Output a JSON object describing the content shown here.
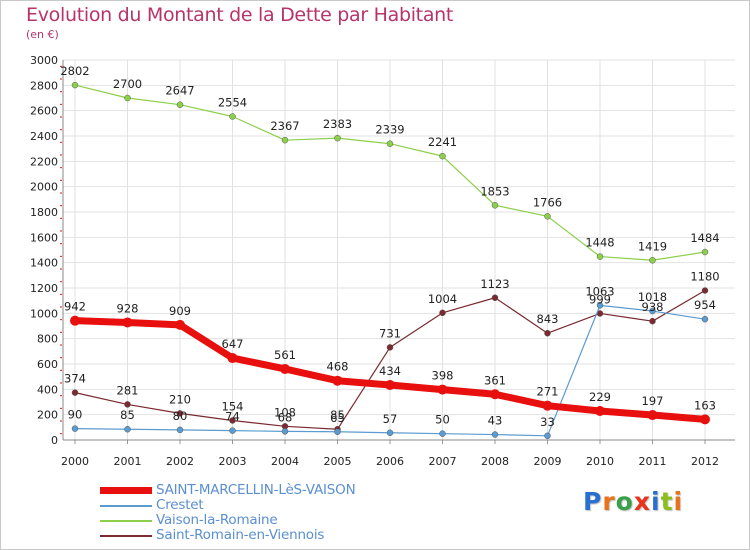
{
  "title": "Evolution du Montant de la Dette par Habitant",
  "unit": "(en €)",
  "logo": {
    "text": "Proxiti",
    "letters": [
      "P",
      "r",
      "o",
      "x",
      "i",
      "t",
      "i"
    ],
    "colors": [
      "#2a6fd0",
      "#e8731a",
      "#3aa04a",
      "#e8341a",
      "#2a6fd0",
      "#8bbf1a",
      "#e8731a"
    ]
  },
  "chart_data": {
    "type": "line",
    "title": "Evolution du Montant de la Dette par Habitant",
    "subtitle": "(en €)",
    "x": [
      "2000",
      "2001",
      "2002",
      "2003",
      "2004",
      "2005",
      "2006",
      "2007",
      "2008",
      "2009",
      "2010",
      "2011",
      "2012"
    ],
    "ylim": [
      0,
      3000
    ],
    "yticks": [
      0,
      200,
      400,
      600,
      800,
      1000,
      1200,
      1400,
      1600,
      1800,
      2000,
      2200,
      2400,
      2600,
      2800,
      3000
    ],
    "grid": true,
    "legend": "bottom-left",
    "series": [
      {
        "name": "SAINT-MARCELLIN-LèS-VAISON",
        "color": "#e8100e",
        "width": 7,
        "values": [
          942,
          928,
          909,
          647,
          561,
          468,
          434,
          398,
          361,
          271,
          229,
          197,
          163
        ],
        "labels": [
          "942",
          "928",
          "909",
          "647",
          "561",
          "468",
          "434",
          "398",
          "361",
          "271",
          "229",
          "197",
          "163"
        ]
      },
      {
        "name": "Crestet",
        "color": "#5b9bd0",
        "width": 1.2,
        "values": [
          90,
          85,
          80,
          74,
          68,
          65,
          57,
          50,
          43,
          33,
          1063,
          1018,
          954
        ],
        "labels": [
          "90",
          "85",
          "80",
          "74",
          "68",
          "65",
          "57",
          "50",
          "43",
          "33",
          "1063",
          "1018",
          "954"
        ]
      },
      {
        "name": "Vaison-la-Romaine",
        "color": "#8ccf4a",
        "width": 1.2,
        "values": [
          2802,
          2700,
          2647,
          2554,
          2367,
          2383,
          2339,
          2241,
          1853,
          1766,
          1448,
          1419,
          1484
        ],
        "labels": [
          "2802",
          "2700",
          "2647",
          "2554",
          "2367",
          "2383",
          "2339",
          "2241",
          "1853",
          "1766",
          "1448",
          "1419",
          "1484"
        ]
      },
      {
        "name": "Saint-Romain-en-Viennois",
        "color": "#7a2a30",
        "width": 1.2,
        "values": [
          374,
          281,
          210,
          154,
          108,
          85,
          731,
          1004,
          1123,
          843,
          999,
          938,
          1180
        ],
        "labels": [
          "374",
          "281",
          "210",
          "154",
          "108",
          "85",
          "731",
          "1004",
          "1123",
          "843",
          "999",
          "938",
          "1180"
        ]
      }
    ]
  }
}
